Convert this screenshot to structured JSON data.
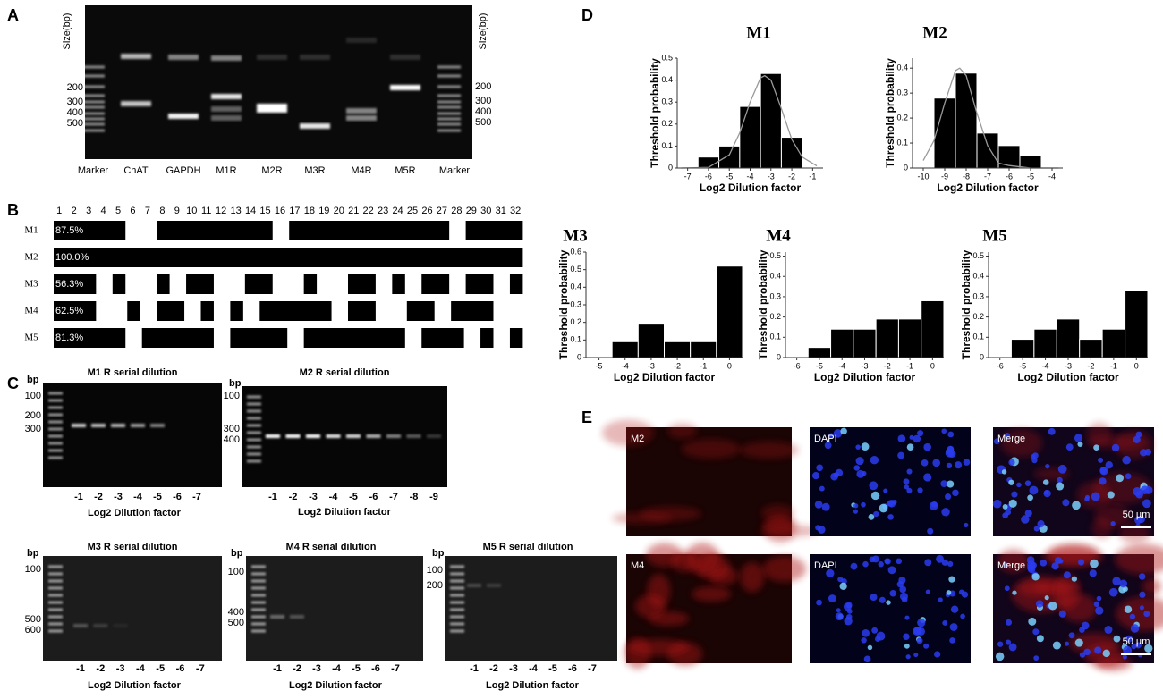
{
  "panel_a": {
    "letter": "A",
    "size_label": "Size(bp)",
    "left_sizes": [
      200,
      300,
      400,
      500
    ],
    "right_sizes": [
      200,
      300,
      400,
      500
    ],
    "lanes": [
      "Marker",
      "ChAT",
      "GAPDH",
      "M1R",
      "M2R",
      "M3R",
      "M4R",
      "M5R",
      "Marker"
    ]
  },
  "panel_b": {
    "letter": "B",
    "columns": [
      1,
      2,
      3,
      4,
      5,
      6,
      7,
      8,
      9,
      10,
      11,
      12,
      13,
      14,
      15,
      16,
      17,
      18,
      19,
      20,
      21,
      22,
      23,
      24,
      25,
      26,
      27,
      28,
      29,
      30,
      31,
      32
    ],
    "rows": [
      {
        "name": "M1",
        "percent": "87.5%",
        "segments": [
          [
            1,
            5
          ],
          [
            8,
            15
          ],
          [
            17,
            27
          ],
          [
            29,
            32
          ]
        ]
      },
      {
        "name": "M2",
        "percent": "100.0%",
        "segments": [
          [
            1,
            32
          ]
        ]
      },
      {
        "name": "M3",
        "percent": "56.3%",
        "segments": [
          [
            1,
            3
          ],
          [
            5,
            5
          ],
          [
            8,
            8
          ],
          [
            10,
            11
          ],
          [
            14,
            15
          ],
          [
            18,
            18
          ],
          [
            21,
            22
          ],
          [
            24,
            24
          ],
          [
            26,
            27
          ],
          [
            29,
            30
          ],
          [
            32,
            32
          ]
        ]
      },
      {
        "name": "M4",
        "percent": "62.5%",
        "segments": [
          [
            1,
            3
          ],
          [
            6,
            6
          ],
          [
            8,
            9
          ],
          [
            11,
            11
          ],
          [
            13,
            13
          ],
          [
            15,
            19
          ],
          [
            21,
            22
          ],
          [
            25,
            26
          ],
          [
            28,
            30
          ]
        ]
      },
      {
        "name": "M5",
        "percent": "81.3%",
        "segments": [
          [
            1,
            5
          ],
          [
            7,
            11
          ],
          [
            13,
            16
          ],
          [
            18,
            24
          ],
          [
            26,
            28
          ],
          [
            30,
            30
          ],
          [
            32,
            32
          ]
        ]
      }
    ]
  },
  "panel_c": {
    "letter": "C",
    "gels": [
      {
        "title": "M1 R  serial dilution",
        "bp_label": "bp",
        "sizes": [
          100,
          200,
          300
        ],
        "lanes": [
          -1,
          -2,
          -3,
          -4,
          -5,
          -6,
          -7
        ],
        "x_label": "Log2 Dilution factor"
      },
      {
        "title": "M2 R  serial dilution",
        "bp_label": "bp",
        "sizes": [
          100,
          300,
          400
        ],
        "lanes": [
          -1,
          -2,
          -3,
          -4,
          -5,
          -6,
          -7,
          -8,
          -9
        ],
        "x_label": "Log2 Dilution factor"
      },
      {
        "title": "M3 R  serial dilution",
        "bp_label": "bp",
        "sizes": [
          100,
          500,
          600
        ],
        "lanes": [
          -1,
          -2,
          -3,
          -4,
          -5,
          -6,
          -7
        ],
        "x_label": "Log2 Dilution factor"
      },
      {
        "title": "M4 R  serial dilution",
        "bp_label": "bp",
        "sizes": [
          100,
          400,
          500
        ],
        "lanes": [
          -1,
          -2,
          -3,
          -4,
          -5,
          -6,
          -7
        ],
        "x_label": "Log2 Dilution factor"
      },
      {
        "title": "M5 R  serial dilution",
        "bp_label": "bp",
        "sizes": [
          100,
          200
        ],
        "lanes": [
          -1,
          -2,
          -3,
          -4,
          -5,
          -6,
          -7
        ],
        "x_label": "Log2 Dilution factor"
      }
    ]
  },
  "panel_d": {
    "letter": "D"
  },
  "chart_data": [
    {
      "type": "bar",
      "title": "M1",
      "x": [
        -6,
        -5,
        -4,
        -3,
        -2
      ],
      "values": [
        0.05,
        0.1,
        0.28,
        0.43,
        0.14
      ],
      "color": "#000000",
      "xlim": [
        -7.5,
        -0.5
      ],
      "xticks": [
        -7,
        -6,
        -5,
        -4,
        -3,
        -2,
        -1
      ],
      "ylim": [
        0,
        0.5
      ],
      "yticks": [
        0,
        0.1,
        0.2,
        0.3,
        0.4,
        0.5
      ],
      "xlabel": "Log2 Dilution factor",
      "ylabel": "Threshold probability",
      "fit": {
        "color": "#999999",
        "x": [
          -7.3,
          -6,
          -5,
          -4.5,
          -4,
          -3.5,
          -3.3,
          -3,
          -2.5,
          -2,
          -1.5,
          -0.8
        ],
        "y": [
          0,
          0.003,
          0.06,
          0.16,
          0.3,
          0.41,
          0.42,
          0.4,
          0.27,
          0.13,
          0.05,
          0.01
        ]
      }
    },
    {
      "type": "bar",
      "title": "M2",
      "x": [
        -9,
        -8,
        -7,
        -6,
        -5
      ],
      "values": [
        0.28,
        0.38,
        0.14,
        0.09,
        0.05
      ],
      "color": "#000000",
      "xlim": [
        -10.5,
        -3.5
      ],
      "xticks": [
        -10,
        -9,
        -8,
        -7,
        -6,
        -5,
        -4
      ],
      "ylim": [
        0,
        0.44
      ],
      "yticks": [
        0,
        0.1,
        0.2,
        0.3,
        0.4
      ],
      "xlabel": "Log2 Dilution factor",
      "ylabel": "Threshold probability",
      "fit": {
        "color": "#999999",
        "x": [
          -10,
          -9.5,
          -9,
          -8.5,
          -8.3,
          -8,
          -7.5,
          -7,
          -6.5,
          -6,
          -5,
          -3.7
        ],
        "y": [
          0.03,
          0.11,
          0.26,
          0.39,
          0.4,
          0.37,
          0.22,
          0.09,
          0.02,
          0.01,
          0,
          0
        ]
      }
    },
    {
      "type": "bar",
      "title": "M3",
      "x": [
        -4,
        -3,
        -2,
        -1,
        0
      ],
      "values": [
        0.09,
        0.19,
        0.09,
        0.09,
        0.52
      ],
      "color": "#000000",
      "xlim": [
        -5.5,
        0.5
      ],
      "xticks": [
        -5,
        -4,
        -3,
        -2,
        -1,
        0
      ],
      "ylim": [
        0,
        0.6
      ],
      "yticks": [
        0,
        0.1,
        0.2,
        0.3,
        0.4,
        0.5,
        0.6
      ],
      "xlabel": "Log2 Dilution factor",
      "ylabel": "Threshold probability"
    },
    {
      "type": "bar",
      "title": "M4",
      "x": [
        -5,
        -4,
        -3,
        -2,
        -1,
        0
      ],
      "values": [
        0.05,
        0.14,
        0.14,
        0.19,
        0.19,
        0.28
      ],
      "color": "#000000",
      "xlim": [
        -6.5,
        0.5
      ],
      "xticks": [
        -6,
        -5,
        -4,
        -3,
        -2,
        -1,
        0
      ],
      "ylim": [
        0,
        0.52
      ],
      "yticks": [
        0,
        0.1,
        0.2,
        0.3,
        0.4,
        0.5
      ],
      "xlabel": "Log2 Dilution factor",
      "ylabel": "Threshold probability"
    },
    {
      "type": "bar",
      "title": "M5",
      "x": [
        -5,
        -4,
        -3,
        -2,
        -1,
        0
      ],
      "values": [
        0.09,
        0.14,
        0.19,
        0.09,
        0.14,
        0.33
      ],
      "color": "#000000",
      "xlim": [
        -6.5,
        0.5
      ],
      "xticks": [
        -6,
        -5,
        -4,
        -3,
        -2,
        -1,
        0
      ],
      "ylim": [
        0,
        0.52
      ],
      "yticks": [
        0,
        0.1,
        0.2,
        0.3,
        0.4,
        0.5
      ],
      "xlabel": "Log2 Dilution factor",
      "ylabel": "Threshold probability"
    }
  ],
  "panel_e": {
    "letter": "E",
    "rows": [
      {
        "images": [
          "M2",
          "DAPI",
          "Merge"
        ]
      },
      {
        "images": [
          "M4",
          "DAPI",
          "Merge"
        ]
      }
    ],
    "scale_bar": "50 µm"
  }
}
